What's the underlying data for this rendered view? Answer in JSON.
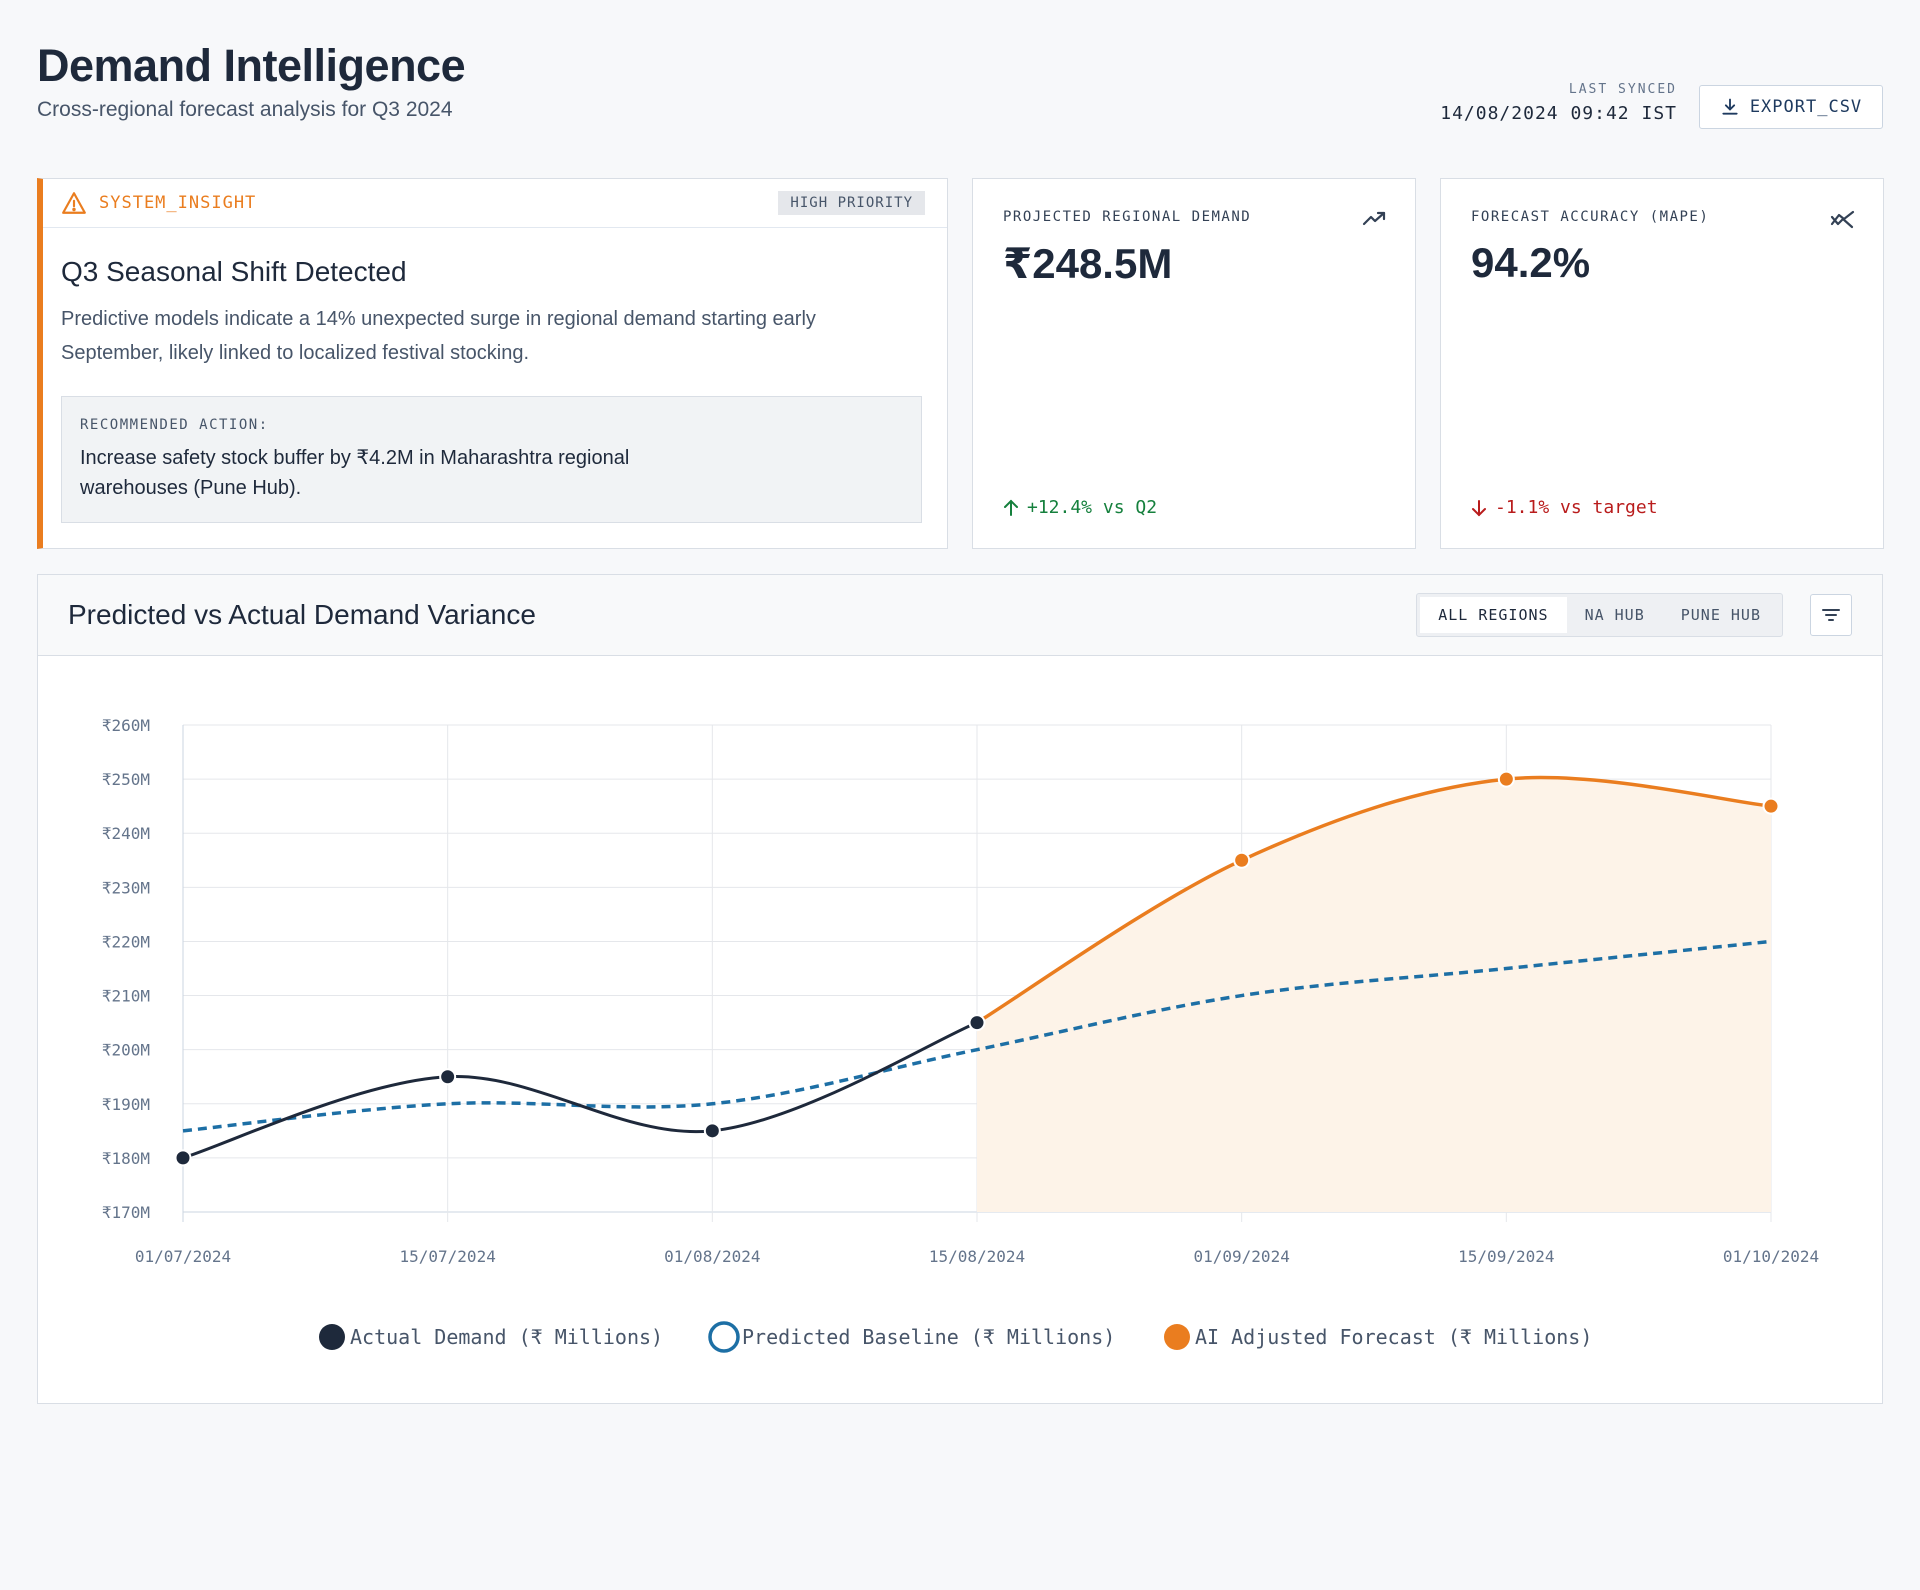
{
  "header": {
    "title": "Demand Intelligence",
    "subtitle": "Cross-regional forecast analysis for Q3 2024",
    "last_synced_label": "LAST SYNCED",
    "last_synced_value": "14/08/2024 09:42 IST",
    "export_label": "EXPORT_CSV"
  },
  "insight": {
    "tag": "SYSTEM_INSIGHT",
    "priority": "HIGH PRIORITY",
    "title": "Q3 Seasonal Shift Detected",
    "text": "Predictive models indicate a 14% unexpected surge in regional demand starting early September, likely linked to localized festival stocking.",
    "action_label": "RECOMMENDED ACTION:",
    "action_text": "Increase safety stock buffer by ₹4.2M in Maharashtra regional warehouses (Pune Hub)."
  },
  "kpis": [
    {
      "label": "PROJECTED REGIONAL DEMAND",
      "value": "₹248.5M",
      "delta": "+12.4% vs Q2",
      "icon": "trending-up-icon"
    },
    {
      "label": "FORECAST ACCURACY (MAPE)",
      "value": "94.2%",
      "delta": "-1.1% vs target",
      "icon": "trending-mixed-icon"
    }
  ],
  "chart_panel": {
    "title": "Predicted vs Actual Demand Variance",
    "filters": [
      "ALL REGIONS",
      "NA HUB",
      "PUNE HUB"
    ],
    "active_filter": "ALL REGIONS"
  },
  "colors": {
    "actual": "#1e293b",
    "predicted": "#1d6fa5",
    "forecast": "#ea7d1f",
    "forecast_fill": "#fdf3e8",
    "accent": "#ea7d1f"
  },
  "chart_data": {
    "type": "line",
    "categories": [
      "01/07/2024",
      "15/07/2024",
      "01/08/2024",
      "15/08/2024",
      "01/09/2024",
      "15/09/2024",
      "01/10/2024"
    ],
    "y_ticks": [
      "₹170M",
      "₹180M",
      "₹190M",
      "₹200M",
      "₹210M",
      "₹220M",
      "₹230M",
      "₹240M",
      "₹250M",
      "₹260M"
    ],
    "ylim": [
      170,
      260
    ],
    "series": [
      {
        "name": "Actual Demand (₹ Millions)",
        "values": [
          180,
          195,
          185,
          205,
          null,
          null,
          null
        ]
      },
      {
        "name": "Predicted Baseline (₹ Millions)",
        "values": [
          185,
          190,
          190,
          200,
          210,
          215,
          220
        ]
      },
      {
        "name": "AI Adjusted Forecast (₹ Millions)",
        "values": [
          null,
          null,
          null,
          205,
          235,
          250,
          245
        ]
      }
    ],
    "grid": true,
    "legend": "bottom"
  }
}
